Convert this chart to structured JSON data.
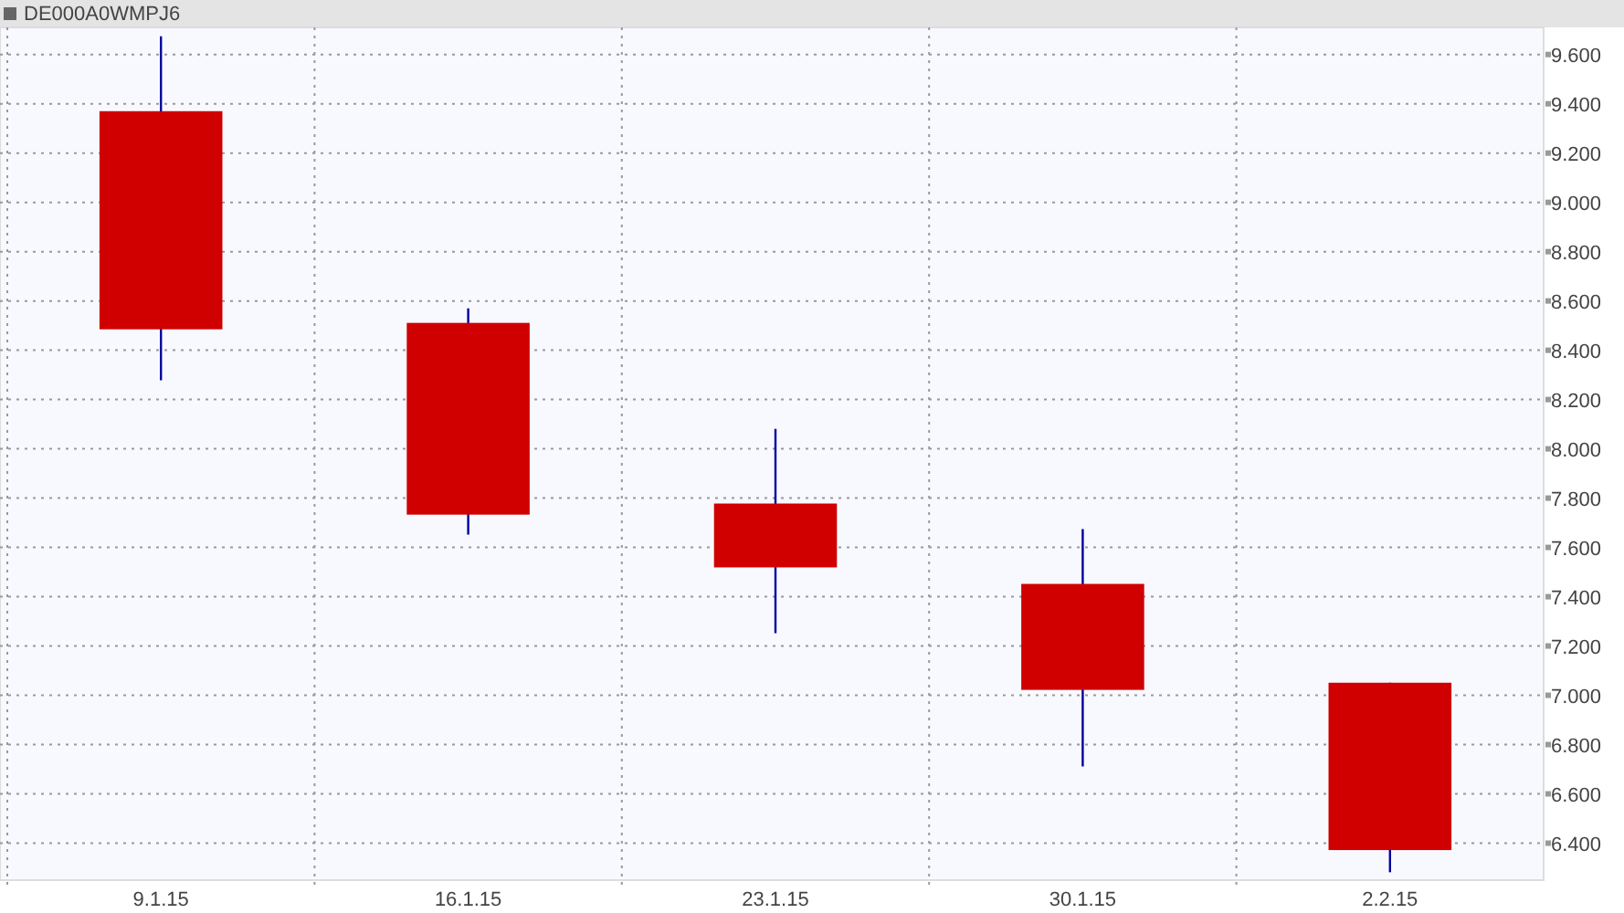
{
  "chart_data": {
    "type": "candlestick",
    "title": "DE000A0WMPJ6",
    "categories": [
      "9.1.15",
      "16.1.15",
      "23.1.15",
      "30.1.15",
      "2.2.15"
    ],
    "ohlc": [
      [
        9.37,
        9.674,
        8.278,
        8.485
      ],
      [
        8.511,
        8.57,
        7.652,
        7.733
      ],
      [
        7.778,
        8.081,
        7.252,
        7.519
      ],
      [
        7.452,
        7.674,
        6.711,
        7.022
      ],
      [
        7.051,
        7.051,
        6.282,
        6.372
      ]
    ],
    "colors": [
      "#d00000",
      "#d00000",
      "#d00000",
      "#d00000",
      "#d00000"
    ],
    "ylim": [
      6.25,
      9.71
    ],
    "yticks": [
      {
        "value": 6.4,
        "label": "6.400"
      },
      {
        "value": 6.6,
        "label": "6.600"
      },
      {
        "value": 6.8,
        "label": "6.800"
      },
      {
        "value": 7,
        "label": "7.000"
      },
      {
        "value": 7.2,
        "label": "7.200"
      },
      {
        "value": 7.4,
        "label": "7.400"
      },
      {
        "value": 7.6,
        "label": "7.600"
      },
      {
        "value": 7.8,
        "label": "7.800"
      },
      {
        "value": 8,
        "label": "8.000"
      },
      {
        "value": 8.2,
        "label": "8.200"
      },
      {
        "value": 8.4,
        "label": "8.400"
      },
      {
        "value": 8.6,
        "label": "8.600"
      },
      {
        "value": 8.8,
        "label": "8.800"
      },
      {
        "value": 9,
        "label": "9.000"
      },
      {
        "value": 9.2,
        "label": "9.200"
      },
      {
        "value": 9.4,
        "label": "9.400"
      },
      {
        "value": 9.6,
        "label": "9.600"
      }
    ],
    "grid": true
  }
}
